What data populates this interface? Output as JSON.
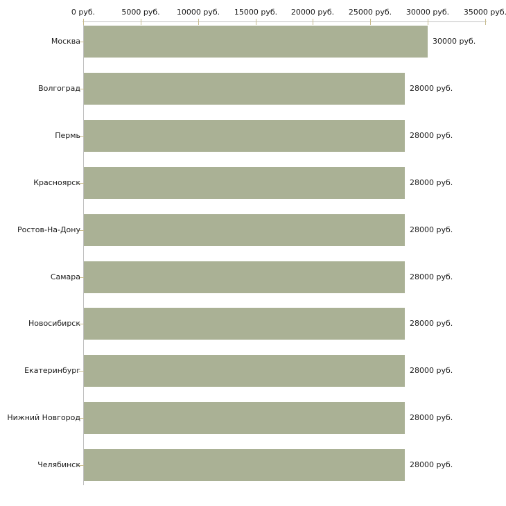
{
  "chart_data": {
    "type": "bar",
    "orientation": "horizontal",
    "title": "",
    "xlabel": "",
    "ylabel": "",
    "unit": "руб.",
    "categories": [
      "Москва",
      "Волгоград",
      "Пермь",
      "Красноярск",
      "Ростов-На-Дону",
      "Самара",
      "Новосибирск",
      "Екатеринбург",
      "Нижний Новгород",
      "Челябинск"
    ],
    "values": [
      30000,
      28000,
      28000,
      28000,
      28000,
      28000,
      28000,
      28000,
      28000,
      28000
    ],
    "value_labels": [
      "30000 руб.",
      "28000 руб.",
      "28000 руб.",
      "28000 руб.",
      "28000 руб.",
      "28000 руб.",
      "28000 руб.",
      "28000 руб.",
      "28000 руб.",
      "28000 руб."
    ],
    "x_tick_values": [
      0,
      5000,
      10000,
      15000,
      20000,
      25000,
      30000,
      35000
    ],
    "x_tick_labels": [
      "0 руб.",
      "5000 руб.",
      "10000 руб.",
      "15000 руб.",
      "20000 руб.",
      "25000 руб.",
      "30000 руб.",
      "35000 руб."
    ],
    "xlim": [
      0,
      35000
    ],
    "grid": false,
    "legend": "none",
    "colors": {
      "bar": "#aab195",
      "axis": "#c0c0c0",
      "tick": "#c8bc8e",
      "text": "#1a1a1a",
      "background": "#ffffff"
    }
  }
}
